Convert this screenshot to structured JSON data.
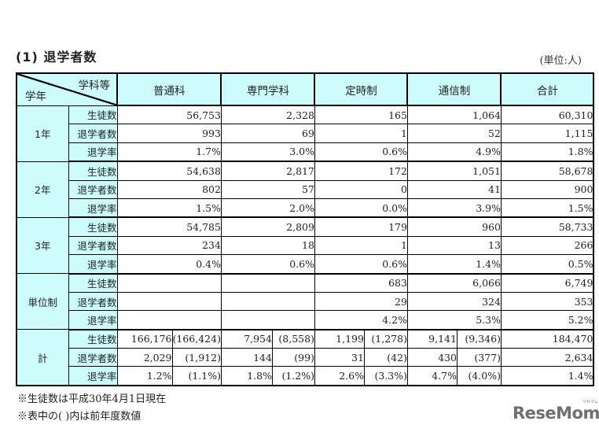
{
  "title": "(1) 退学者数",
  "unit": "(単位:人)",
  "table": {
    "corner": {
      "top": "学科等",
      "bottom": "学年"
    },
    "columns": [
      "普通科",
      "専門学科",
      "定時制",
      "通信制",
      "合計"
    ],
    "groups": [
      {
        "label": "1年",
        "rows": [
          {
            "label": "生徒数",
            "values": [
              "56,753",
              "2,328",
              "165",
              "1,064",
              "60,310"
            ]
          },
          {
            "label": "退学者数",
            "values": [
              "993",
              "69",
              "1",
              "52",
              "1,115"
            ]
          },
          {
            "label": "退学率",
            "values": [
              "1.7%",
              "3.0%",
              "0.6%",
              "4.9%",
              "1.8%"
            ]
          }
        ]
      },
      {
        "label": "2年",
        "rows": [
          {
            "label": "生徒数",
            "values": [
              "54,638",
              "2,817",
              "172",
              "1,051",
              "58,678"
            ]
          },
          {
            "label": "退学者数",
            "values": [
              "802",
              "57",
              "0",
              "41",
              "900"
            ]
          },
          {
            "label": "退学率",
            "values": [
              "1.5%",
              "2.0%",
              "0.0%",
              "3.9%",
              "1.5%"
            ]
          }
        ]
      },
      {
        "label": "3年",
        "rows": [
          {
            "label": "生徒数",
            "values": [
              "54,785",
              "2,809",
              "179",
              "960",
              "58,733"
            ]
          },
          {
            "label": "退学者数",
            "values": [
              "234",
              "18",
              "1",
              "13",
              "266"
            ]
          },
          {
            "label": "退学率",
            "values": [
              "0.4%",
              "0.6%",
              "0.6%",
              "1.4%",
              "0.5%"
            ]
          }
        ]
      },
      {
        "label": "単位制",
        "rows": [
          {
            "label": "生徒数",
            "values": [
              "",
              "",
              "683",
              "6,066",
              "6,749"
            ]
          },
          {
            "label": "退学者数",
            "values": [
              "",
              "",
              "29",
              "324",
              "353"
            ]
          },
          {
            "label": "退学率",
            "values": [
              "",
              "",
              "4.2%",
              "5.3%",
              "5.2%"
            ]
          }
        ]
      },
      {
        "label": "計",
        "rows": [
          {
            "label": "生徒数",
            "values": [
              "166,176",
              "7,954",
              "1,199",
              "9,141",
              "184,470"
            ],
            "prev": [
              "(166,424)",
              "(8,558)",
              "(1,278)",
              "(9,346)"
            ]
          },
          {
            "label": "退学者数",
            "values": [
              "2,029",
              "144",
              "31",
              "430",
              "2,634"
            ],
            "prev": [
              "(1,912)",
              "(99)",
              "(42)",
              "(377)"
            ]
          },
          {
            "label": "退学率",
            "values": [
              "1.2%",
              "1.8%",
              "2.6%",
              "4.7%",
              "1.4%"
            ],
            "prev": [
              "(1.1%)",
              "(1.2%)",
              "(3.3%)",
              "(4.0%)"
            ]
          }
        ]
      }
    ]
  },
  "notes": [
    "※生徒数は平成30年4月1日現在",
    "※表中の( )内は前年度数値"
  ],
  "logo": {
    "text": "ReseMom",
    "ruby": "リセマム"
  }
}
